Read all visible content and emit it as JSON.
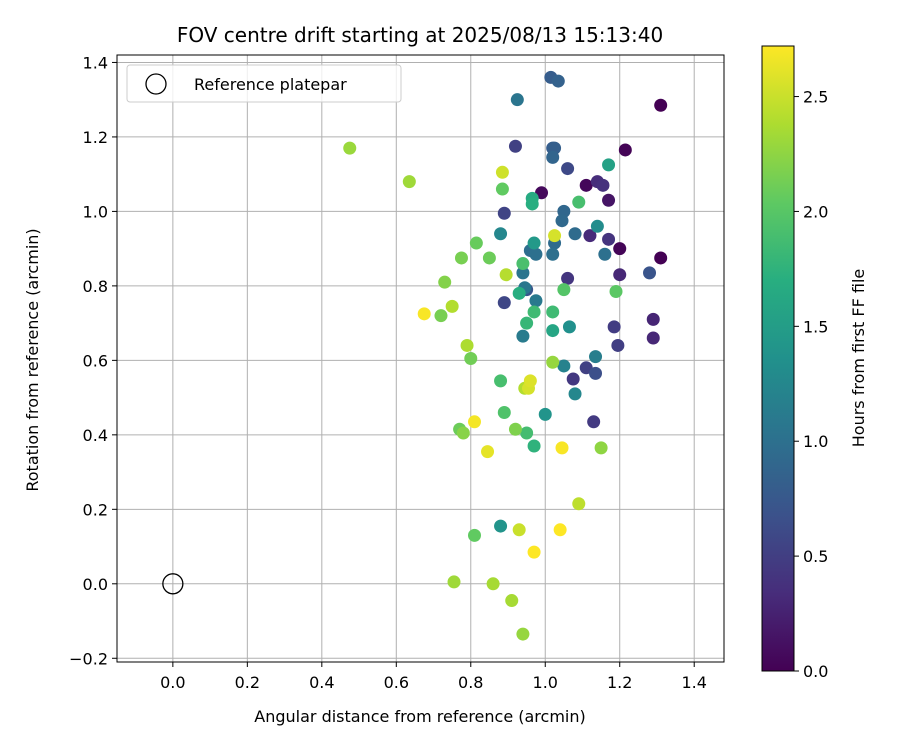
{
  "chart_data": {
    "type": "scatter",
    "title": "FOV centre drift starting at 2025/08/13 15:13:40",
    "xlabel": "Angular distance from reference (arcmin)",
    "ylabel": "Rotation from reference (arcmin)",
    "xlim": [
      -0.15,
      1.48
    ],
    "ylim": [
      -0.21,
      1.42
    ],
    "xticks": [
      0.0,
      0.2,
      0.4,
      0.6,
      0.8,
      1.0,
      1.2,
      1.4
    ],
    "xtick_labels": [
      "0.0",
      "0.2",
      "0.4",
      "0.6",
      "0.8",
      "1.0",
      "1.2",
      "1.4"
    ],
    "yticks": [
      -0.2,
      0.0,
      0.2,
      0.4,
      0.6,
      0.8,
      1.0,
      1.2,
      1.4
    ],
    "ytick_labels": [
      "−0.2",
      "0.0",
      "0.2",
      "0.4",
      "0.6",
      "0.8",
      "1.0",
      "1.2",
      "1.4"
    ],
    "grid": true,
    "legend": {
      "location": "top-left",
      "entries": [
        {
          "label": "Reference platepar",
          "marker": "open-circle"
        }
      ]
    },
    "reference_point": {
      "x": 0.0,
      "y": 0.0
    },
    "colorbar": {
      "label": "Hours from first FF file",
      "colormap": "viridis",
      "range": [
        0.0,
        2.72
      ],
      "ticks": [
        0.0,
        0.5,
        1.0,
        1.5,
        2.0,
        2.5
      ],
      "tick_labels": [
        "0.0",
        "0.5",
        "1.0",
        "1.5",
        "2.0",
        "2.5"
      ]
    },
    "points": [
      {
        "x": 1.31,
        "y": 1.285,
        "c": 0.0
      },
      {
        "x": 1.31,
        "y": 0.875,
        "c": 0.0
      },
      {
        "x": 1.215,
        "y": 1.165,
        "c": 0.02
      },
      {
        "x": 1.2,
        "y": 0.9,
        "c": 0.03
      },
      {
        "x": 1.11,
        "y": 1.07,
        "c": 0.05
      },
      {
        "x": 0.99,
        "y": 1.05,
        "c": 0.06
      },
      {
        "x": 1.17,
        "y": 1.03,
        "c": 0.15
      },
      {
        "x": 1.29,
        "y": 0.71,
        "c": 0.28
      },
      {
        "x": 1.29,
        "y": 0.66,
        "c": 0.3
      },
      {
        "x": 1.2,
        "y": 0.83,
        "c": 0.3
      },
      {
        "x": 1.12,
        "y": 0.935,
        "c": 0.32
      },
      {
        "x": 1.14,
        "y": 1.08,
        "c": 0.35
      },
      {
        "x": 1.155,
        "y": 1.07,
        "c": 0.38
      },
      {
        "x": 1.17,
        "y": 0.925,
        "c": 0.4
      },
      {
        "x": 1.06,
        "y": 0.82,
        "c": 0.42
      },
      {
        "x": 1.075,
        "y": 0.55,
        "c": 0.44
      },
      {
        "x": 1.13,
        "y": 0.435,
        "c": 0.46
      },
      {
        "x": 1.185,
        "y": 0.69,
        "c": 0.48
      },
      {
        "x": 1.195,
        "y": 0.64,
        "c": 0.5
      },
      {
        "x": 0.92,
        "y": 1.175,
        "c": 0.52
      },
      {
        "x": 1.11,
        "y": 0.58,
        "c": 0.52
      },
      {
        "x": 0.89,
        "y": 0.995,
        "c": 0.55
      },
      {
        "x": 0.89,
        "y": 0.755,
        "c": 0.58
      },
      {
        "x": 1.06,
        "y": 1.115,
        "c": 0.6
      },
      {
        "x": 1.135,
        "y": 0.565,
        "c": 0.65
      },
      {
        "x": 1.28,
        "y": 0.835,
        "c": 0.7
      },
      {
        "x": 0.95,
        "y": 0.79,
        "c": 0.72
      },
      {
        "x": 1.02,
        "y": 1.17,
        "c": 0.8
      },
      {
        "x": 1.015,
        "y": 1.36,
        "c": 0.8
      },
      {
        "x": 1.035,
        "y": 1.35,
        "c": 0.85
      },
      {
        "x": 1.025,
        "y": 1.17,
        "c": 0.82
      },
      {
        "x": 1.02,
        "y": 1.145,
        "c": 0.88
      },
      {
        "x": 1.05,
        "y": 1.0,
        "c": 0.9
      },
      {
        "x": 1.045,
        "y": 0.975,
        "c": 0.92
      },
      {
        "x": 1.08,
        "y": 0.94,
        "c": 0.95
      },
      {
        "x": 1.025,
        "y": 0.915,
        "c": 0.95
      },
      {
        "x": 0.96,
        "y": 0.895,
        "c": 0.98
      },
      {
        "x": 0.975,
        "y": 0.885,
        "c": 1.0
      },
      {
        "x": 1.02,
        "y": 0.885,
        "c": 1.0
      },
      {
        "x": 1.16,
        "y": 0.885,
        "c": 1.0
      },
      {
        "x": 0.925,
        "y": 1.3,
        "c": 1.05
      },
      {
        "x": 0.94,
        "y": 0.835,
        "c": 1.05
      },
      {
        "x": 0.945,
        "y": 0.795,
        "c": 1.08
      },
      {
        "x": 0.975,
        "y": 0.76,
        "c": 1.1
      },
      {
        "x": 0.94,
        "y": 0.665,
        "c": 1.12
      },
      {
        "x": 1.135,
        "y": 0.61,
        "c": 1.15
      },
      {
        "x": 1.05,
        "y": 0.585,
        "c": 1.2
      },
      {
        "x": 1.08,
        "y": 0.51,
        "c": 1.25
      },
      {
        "x": 0.88,
        "y": 0.94,
        "c": 1.25
      },
      {
        "x": 1.14,
        "y": 0.96,
        "c": 1.3
      },
      {
        "x": 1.065,
        "y": 0.69,
        "c": 1.35
      },
      {
        "x": 1.0,
        "y": 0.455,
        "c": 1.4
      },
      {
        "x": 0.88,
        "y": 0.155,
        "c": 1.4
      },
      {
        "x": 0.97,
        "y": 0.915,
        "c": 1.45
      },
      {
        "x": 1.17,
        "y": 1.125,
        "c": 1.55
      },
      {
        "x": 1.02,
        "y": 0.68,
        "c": 1.6
      },
      {
        "x": 0.965,
        "y": 1.035,
        "c": 1.65
      },
      {
        "x": 0.965,
        "y": 1.02,
        "c": 1.7
      },
      {
        "x": 0.93,
        "y": 0.78,
        "c": 1.7
      },
      {
        "x": 0.97,
        "y": 0.37,
        "c": 1.75
      },
      {
        "x": 0.95,
        "y": 0.7,
        "c": 1.8
      },
      {
        "x": 1.02,
        "y": 0.73,
        "c": 1.85
      },
      {
        "x": 0.97,
        "y": 0.73,
        "c": 1.85
      },
      {
        "x": 0.95,
        "y": 0.405,
        "c": 1.88
      },
      {
        "x": 0.88,
        "y": 0.545,
        "c": 1.9
      },
      {
        "x": 1.09,
        "y": 1.025,
        "c": 1.9
      },
      {
        "x": 0.94,
        "y": 0.86,
        "c": 1.92
      },
      {
        "x": 0.89,
        "y": 0.46,
        "c": 1.95
      },
      {
        "x": 1.05,
        "y": 0.79,
        "c": 1.98
      },
      {
        "x": 1.19,
        "y": 0.785,
        "c": 2.02
      },
      {
        "x": 0.885,
        "y": 1.06,
        "c": 2.05
      },
      {
        "x": 0.81,
        "y": 0.13,
        "c": 2.05
      },
      {
        "x": 0.815,
        "y": 0.915,
        "c": 2.08
      },
      {
        "x": 0.85,
        "y": 0.875,
        "c": 2.1
      },
      {
        "x": 0.77,
        "y": 0.415,
        "c": 2.1
      },
      {
        "x": 0.8,
        "y": 0.605,
        "c": 2.12
      },
      {
        "x": 0.72,
        "y": 0.72,
        "c": 2.15
      },
      {
        "x": 0.775,
        "y": 0.875,
        "c": 2.15
      },
      {
        "x": 0.92,
        "y": 0.415,
        "c": 2.18
      },
      {
        "x": 0.73,
        "y": 0.81,
        "c": 2.2
      },
      {
        "x": 0.78,
        "y": 0.405,
        "c": 2.22
      },
      {
        "x": 1.15,
        "y": 0.365,
        "c": 2.25
      },
      {
        "x": 1.02,
        "y": 0.595,
        "c": 2.28
      },
      {
        "x": 0.94,
        "y": -0.135,
        "c": 2.28
      },
      {
        "x": 0.475,
        "y": 1.17,
        "c": 2.3
      },
      {
        "x": 0.635,
        "y": 1.08,
        "c": 2.32
      },
      {
        "x": 0.755,
        "y": 0.005,
        "c": 2.32
      },
      {
        "x": 0.86,
        "y": 0.0,
        "c": 2.35
      },
      {
        "x": 0.91,
        "y": -0.045,
        "c": 2.35
      },
      {
        "x": 0.79,
        "y": 0.64,
        "c": 2.38
      },
      {
        "x": 0.75,
        "y": 0.745,
        "c": 2.4
      },
      {
        "x": 0.945,
        "y": 0.525,
        "c": 2.4
      },
      {
        "x": 0.895,
        "y": 0.83,
        "c": 2.42
      },
      {
        "x": 1.09,
        "y": 0.215,
        "c": 2.45
      },
      {
        "x": 0.93,
        "y": 0.145,
        "c": 2.5
      },
      {
        "x": 0.885,
        "y": 1.105,
        "c": 2.52
      },
      {
        "x": 1.025,
        "y": 0.935,
        "c": 2.55
      },
      {
        "x": 0.955,
        "y": 0.525,
        "c": 2.55
      },
      {
        "x": 0.96,
        "y": 0.545,
        "c": 2.58
      },
      {
        "x": 0.845,
        "y": 0.355,
        "c": 2.62
      },
      {
        "x": 0.81,
        "y": 0.435,
        "c": 2.68
      },
      {
        "x": 0.675,
        "y": 0.725,
        "c": 2.7
      },
      {
        "x": 1.045,
        "y": 0.365,
        "c": 2.7
      },
      {
        "x": 1.04,
        "y": 0.145,
        "c": 2.72
      },
      {
        "x": 0.97,
        "y": 0.085,
        "c": 2.72
      }
    ]
  }
}
